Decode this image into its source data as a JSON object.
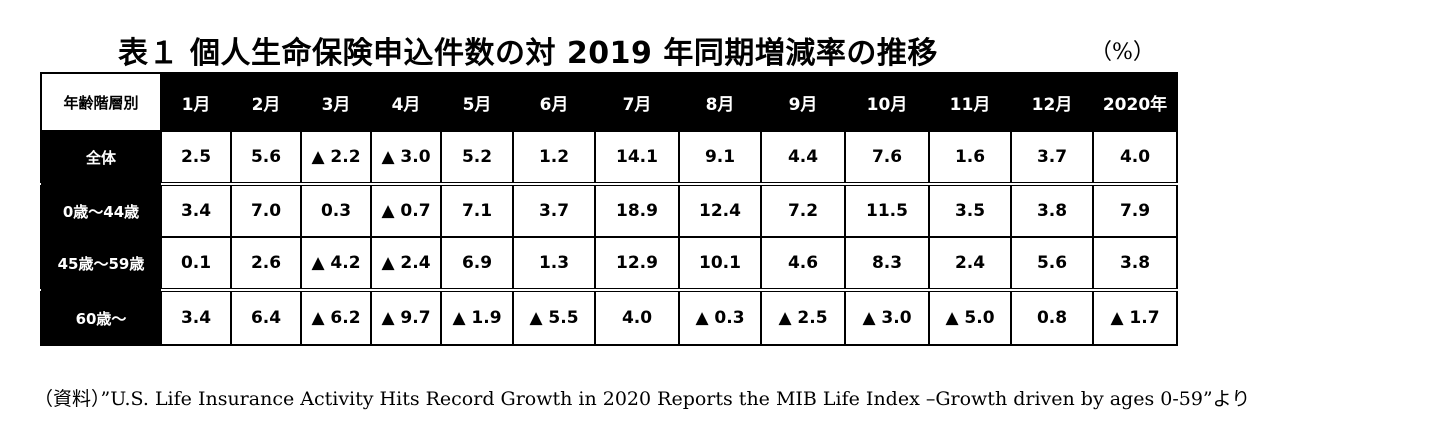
{
  "title": "表１ 個人生命保険申込件数の対 2019 年同期増減率の推移",
  "unit": "（%）",
  "table": {
    "corner": "年齢階層別",
    "columns": [
      "1月",
      "2月",
      "3月",
      "4月",
      "5月",
      "6月",
      "7月",
      "8月",
      "9月",
      "10月",
      "11月",
      "12月",
      "2020年"
    ],
    "rows": [
      {
        "label": "全体",
        "values": [
          "2.5",
          "5.6",
          "▲ 2.2",
          "▲ 3.0",
          "5.2",
          "1.2",
          "14.1",
          "9.1",
          "4.4",
          "7.6",
          "1.6",
          "3.7",
          "4.0"
        ]
      },
      {
        "label": "0歳～44歳",
        "values": [
          "3.4",
          "7.0",
          "0.3",
          "▲ 0.7",
          "7.1",
          "3.7",
          "18.9",
          "12.4",
          "7.2",
          "11.5",
          "3.5",
          "3.8",
          "7.9"
        ]
      },
      {
        "label": "45歳～59歳",
        "values": [
          "0.1",
          "2.6",
          "▲ 4.2",
          "▲ 2.4",
          "6.9",
          "1.3",
          "12.9",
          "10.1",
          "4.6",
          "8.3",
          "2.4",
          "5.6",
          "3.8"
        ]
      },
      {
        "label": "60歳～",
        "values": [
          "3.4",
          "6.4",
          "▲ 6.2",
          "▲ 9.7",
          "▲ 1.9",
          "▲ 5.5",
          "4.0",
          "▲ 0.3",
          "▲ 2.5",
          "▲ 3.0",
          "▲ 5.0",
          "0.8",
          "▲ 1.7"
        ]
      }
    ]
  },
  "source": "（資料）”U.S. Life Insurance Activity Hits Record Growth in 2020 Reports the MIB Life Index –Growth driven by ages 0-59”より"
}
